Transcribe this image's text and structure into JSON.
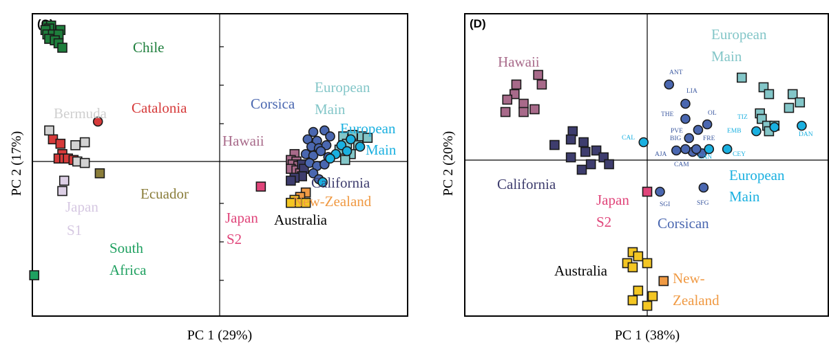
{
  "chart_data": [
    {
      "type": "scatter",
      "panel": "(C)",
      "xlabel": "PC 1 (29%)",
      "ylabel": "PC 2 (17%)",
      "groups": [
        {
          "name": "Chile",
          "color": "#1e7e3c",
          "marker": "square",
          "points": [
            [
              -0.92,
              0.92
            ],
            [
              -0.9,
              0.92
            ],
            [
              -0.91,
              0.9
            ],
            [
              -0.85,
              0.89
            ],
            [
              -0.93,
              0.89
            ],
            [
              -0.92,
              0.86
            ],
            [
              -0.89,
              0.86
            ],
            [
              -0.86,
              0.86
            ],
            [
              -0.91,
              0.83
            ],
            [
              -0.88,
              0.82
            ],
            [
              -0.86,
              0.8
            ],
            [
              -0.84,
              0.77
            ]
          ]
        },
        {
          "name": "Catalonia",
          "color": "#d63a3a",
          "marker": "mixed",
          "points": [
            [
              -0.89,
              0.15
            ],
            [
              -0.85,
              0.12
            ],
            [
              -0.84,
              0.05
            ],
            [
              -0.86,
              0.02
            ],
            [
              -0.83,
              0.02
            ],
            [
              -0.81,
              0.02
            ],
            [
              -0.78,
              0.01
            ]
          ],
          "circles": [
            [
              -0.65,
              0.27
            ]
          ]
        },
        {
          "name": "Bermuda",
          "color": "#d2d2d2",
          "marker": "square",
          "points": [
            [
              -0.91,
              0.21
            ],
            [
              -0.77,
              0.11
            ],
            [
              -0.72,
              0.13
            ],
            [
              -0.76,
              0.0
            ],
            [
              -0.72,
              -0.01
            ]
          ]
        },
        {
          "name": "Ecuador",
          "color": "#8a7d3a",
          "marker": "square",
          "points": [
            [
              -0.64,
              -0.08
            ]
          ]
        },
        {
          "name": "Japan S1",
          "color": "#ddd0e6",
          "marker": "square",
          "points": [
            [
              -0.83,
              -0.13
            ],
            [
              -0.84,
              -0.2
            ]
          ]
        },
        {
          "name": "South Africa",
          "color": "#1fa060",
          "marker": "square",
          "points": [
            [
              -0.99,
              -0.77
            ]
          ]
        },
        {
          "name": "Hawaii",
          "color": "#a86a8a",
          "marker": "square",
          "points": [
            [
              0.4,
              0.05
            ],
            [
              0.38,
              0.01
            ],
            [
              0.41,
              0.0
            ],
            [
              0.39,
              -0.02
            ],
            [
              0.42,
              -0.03
            ],
            [
              0.38,
              -0.05
            ],
            [
              0.41,
              -0.06
            ],
            [
              0.43,
              -0.08
            ]
          ]
        },
        {
          "name": "California",
          "color": "#3e3d6e",
          "marker": "square",
          "points": [
            [
              0.44,
              -0.02
            ],
            [
              0.45,
              -0.05
            ],
            [
              0.44,
              -0.1
            ],
            [
              0.4,
              -0.11
            ],
            [
              0.38,
              -0.13
            ]
          ]
        },
        {
          "name": "Japan S2",
          "color": "#e0457a",
          "marker": "square",
          "points": [
            [
              0.22,
              -0.17
            ]
          ]
        },
        {
          "name": "New-Zealand",
          "color": "#f09a44",
          "marker": "square",
          "points": [
            [
              0.46,
              -0.21
            ],
            [
              0.43,
              -0.24
            ]
          ]
        },
        {
          "name": "Australia",
          "color": "#f3c623",
          "marker": "square",
          "points": [
            [
              0.4,
              -0.26
            ],
            [
              0.42,
              -0.28
            ],
            [
              0.38,
              -0.28
            ],
            [
              0.46,
              -0.28
            ]
          ]
        },
        {
          "name": "Corsica",
          "color": "#4a67b0",
          "marker": "circle",
          "points": [
            [
              0.5,
              0.2
            ],
            [
              0.56,
              0.21
            ],
            [
              0.47,
              0.15
            ],
            [
              0.52,
              0.14
            ],
            [
              0.59,
              0.17
            ],
            [
              0.49,
              0.1
            ],
            [
              0.53,
              0.09
            ],
            [
              0.57,
              0.11
            ],
            [
              0.46,
              0.05
            ],
            [
              0.5,
              0.04
            ],
            [
              0.54,
              0.07
            ],
            [
              0.58,
              0.03
            ],
            [
              0.48,
              -0.01
            ],
            [
              0.52,
              -0.03
            ],
            [
              0.56,
              -0.02
            ],
            [
              0.5,
              -0.08
            ],
            [
              0.53,
              -0.12
            ]
          ]
        },
        {
          "name": "European Main",
          "color": "#83c6c8",
          "marker": "square",
          "points": [
            [
              0.66,
              0.17
            ],
            [
              0.71,
              0.18
            ],
            [
              0.76,
              0.17
            ],
            [
              0.79,
              0.16
            ],
            [
              0.68,
              0.12
            ],
            [
              0.74,
              0.11
            ],
            [
              0.64,
              0.08
            ],
            [
              0.7,
              0.05
            ],
            [
              0.67,
              0.01
            ]
          ]
        },
        {
          "name": "European Main",
          "color": "#1ab0e0",
          "marker": "circle",
          "points": [
            [
              0.7,
              0.15
            ],
            [
              0.65,
              0.11
            ],
            [
              0.75,
              0.1
            ],
            [
              0.62,
              0.05
            ],
            [
              0.68,
              0.07
            ],
            [
              0.59,
              0.02
            ],
            [
              0.55,
              -0.14
            ]
          ]
        }
      ],
      "labels": {
        "chile": "Chile",
        "catalonia": "Catalonia",
        "bermuda": "Bermuda",
        "ecuador": "Ecuador",
        "japan_s1_line1": "Japan",
        "japan_s1_line2": "S1",
        "south_africa_line1": "South",
        "south_africa_line2": "Africa",
        "corsica": "Corsica",
        "hawaii": "Hawaii",
        "california": "California",
        "new_zealand": "New-Zealand",
        "australia": "Australia",
        "japan_s2_line1": "Japan",
        "japan_s2_line2": "S2",
        "european_main_a_line1": "European",
        "european_main_a_line2": "Main",
        "european_main_b_line1": "European",
        "european_main_b_line2": "Main"
      },
      "ylim": [
        -1,
        1
      ],
      "xlim": [
        -1,
        1
      ],
      "grid": false
    },
    {
      "type": "scatter",
      "panel": "(D)",
      "xlabel": "PC 1 (38%)",
      "ylabel": "PC 2 (20%)",
      "groups": [
        {
          "name": "Hawaii",
          "color": "#a86a8a",
          "marker": "square",
          "points": [
            [
              -0.6,
              0.62
            ],
            [
              -0.72,
              0.55
            ],
            [
              -0.58,
              0.55
            ],
            [
              -0.73,
              0.48
            ],
            [
              -0.77,
              0.44
            ],
            [
              -0.68,
              0.41
            ],
            [
              -0.78,
              0.35
            ],
            [
              -0.68,
              0.35
            ],
            [
              -0.62,
              0.37
            ]
          ]
        },
        {
          "name": "California",
          "color": "#3e3d6e",
          "marker": "square",
          "points": [
            [
              -0.41,
              0.21
            ],
            [
              -0.51,
              0.11
            ],
            [
              -0.42,
              0.15
            ],
            [
              -0.35,
              0.13
            ],
            [
              -0.28,
              0.07
            ],
            [
              -0.34,
              0.06
            ],
            [
              -0.24,
              0.02
            ],
            [
              -0.42,
              0.02
            ],
            [
              -0.31,
              -0.03
            ],
            [
              -0.21,
              -0.03
            ],
            [
              -0.36,
              -0.07
            ]
          ]
        },
        {
          "name": "Japan S2",
          "color": "#e0457a",
          "marker": "square",
          "points": [
            [
              0.0,
              -0.23
            ]
          ]
        },
        {
          "name": "Australia",
          "color": "#f3c623",
          "marker": "square",
          "points": [
            [
              -0.08,
              -0.67
            ],
            [
              -0.05,
              -0.7
            ],
            [
              -0.11,
              -0.75
            ],
            [
              -0.08,
              -0.78
            ],
            [
              0.0,
              -0.75
            ],
            [
              -0.05,
              -0.95
            ],
            [
              -0.08,
              -1.02
            ],
            [
              0.0,
              -1.06
            ],
            [
              0.03,
              -0.99
            ]
          ]
        },
        {
          "name": "New-Zealand",
          "color": "#f09a44",
          "marker": "square",
          "points": [
            [
              0.09,
              -0.88
            ]
          ]
        },
        {
          "name": "Corsican",
          "color": "#4a67b0",
          "marker": "circle",
          "points": [
            [
              0.12,
              0.55
            ],
            [
              0.21,
              0.41
            ],
            [
              0.21,
              0.3
            ],
            [
              0.33,
              0.26
            ],
            [
              0.28,
              0.22
            ],
            [
              0.23,
              0.16
            ],
            [
              0.16,
              0.07
            ],
            [
              0.25,
              0.06
            ],
            [
              0.3,
              0.05
            ],
            [
              0.27,
              0.08
            ],
            [
              0.21,
              0.08
            ],
            [
              0.07,
              -0.23
            ],
            [
              0.31,
              -0.2
            ]
          ]
        },
        {
          "name": "European Main",
          "color": "#83c6c8",
          "marker": "square",
          "points": [
            [
              0.52,
              0.6
            ],
            [
              0.64,
              0.53
            ],
            [
              0.67,
              0.48
            ],
            [
              0.8,
              0.48
            ],
            [
              0.84,
              0.42
            ],
            [
              0.78,
              0.38
            ],
            [
              0.62,
              0.34
            ],
            [
              0.63,
              0.3
            ],
            [
              0.66,
              0.25
            ],
            [
              0.7,
              0.25
            ],
            [
              0.67,
              0.21
            ]
          ]
        },
        {
          "name": "European Main",
          "color": "#1ab0e0",
          "marker": "circle",
          "points": [
            [
              -0.02,
              0.13
            ],
            [
              0.34,
              0.08
            ],
            [
              0.44,
              0.08
            ],
            [
              0.6,
              0.21
            ],
            [
              0.85,
              0.25
            ],
            [
              0.7,
              0.24
            ]
          ]
        }
      ],
      "labels": {
        "hawaii": "Hawaii",
        "california": "California",
        "japan_s2_line1": "Japan",
        "japan_s2_line2": "S2",
        "corsican": "Corsican",
        "australia": "Australia",
        "new_zealand_line1": "New-",
        "new_zealand_line2": "Zealand",
        "european_main_top_line1": "European",
        "european_main_top_line2": "Main",
        "european_main_bottom_line1": "European",
        "european_main_bottom_line2": "Main"
      },
      "pop_codes": {
        "ANT": "ANT",
        "LIA": "LIA",
        "THE": "THE",
        "OL": "OL",
        "PVE": "PVE",
        "BIG": "BIG",
        "FRE": "FRE",
        "AJA": "AJA",
        "CAM": "CAM",
        "CAN": "CAN",
        "CAL": "CAL",
        "CEY": "CEY",
        "TIZ": "TIZ",
        "EMB": "EMB",
        "DAN": "DAN",
        "SGI": "SGI",
        "SFG": "SFG"
      },
      "ylim": [
        -1.1,
        1.0
      ],
      "xlim": [
        -1,
        1
      ],
      "grid": false
    }
  ]
}
